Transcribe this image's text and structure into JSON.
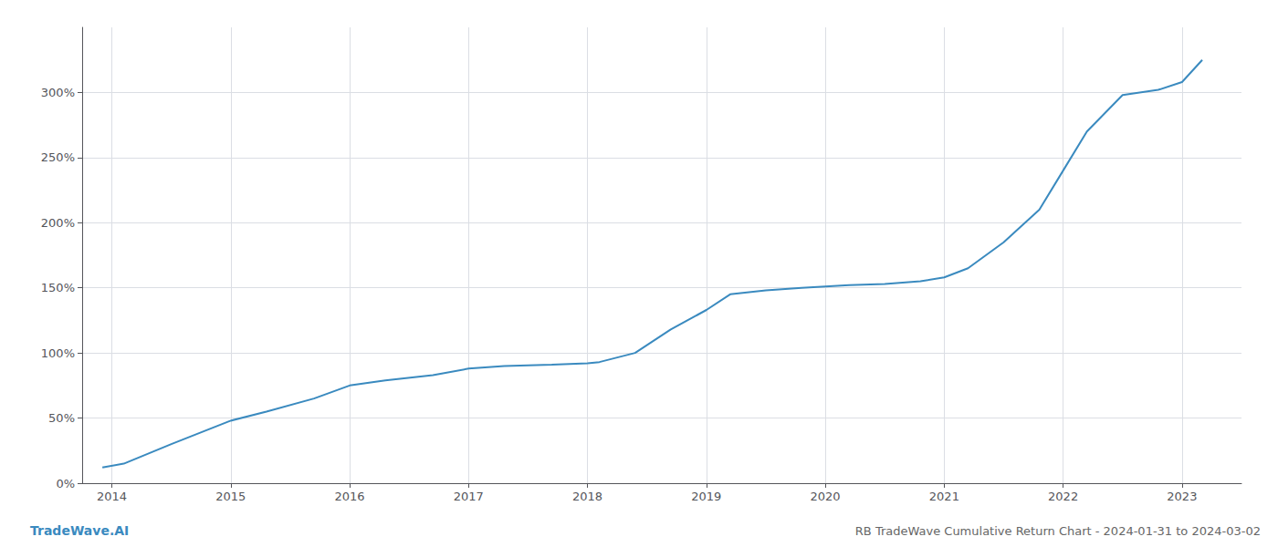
{
  "chart_data": {
    "type": "line",
    "title": "RB TradeWave Cumulative Return Chart - 2024-01-31 to 2024-03-02",
    "annotations": [
      "TradeWave.AI"
    ],
    "color": "#3a8abf",
    "x": [
      2013.92,
      2014.1,
      2014.5,
      2015.0,
      2015.3,
      2015.7,
      2016.0,
      2016.3,
      2016.7,
      2017.0,
      2017.3,
      2017.7,
      2018.0,
      2018.1,
      2018.4,
      2018.7,
      2019.0,
      2019.2,
      2019.5,
      2019.8,
      2020.0,
      2020.2,
      2020.5,
      2020.8,
      2021.0,
      2021.2,
      2021.5,
      2021.8,
      2022.0,
      2022.2,
      2022.5,
      2022.8,
      2023.0,
      2023.17
    ],
    "values": [
      12,
      15,
      30,
      48,
      55,
      65,
      75,
      79,
      83,
      88,
      90,
      91,
      92,
      93,
      100,
      118,
      133,
      145,
      148,
      150,
      151,
      152,
      153,
      155,
      158,
      165,
      185,
      210,
      240,
      270,
      298,
      302,
      308,
      325
    ],
    "xlim": [
      2013.75,
      2023.5
    ],
    "ylim": [
      0,
      350
    ],
    "xticks": [
      2014,
      2015,
      2016,
      2017,
      2018,
      2019,
      2020,
      2021,
      2022,
      2023
    ],
    "yticks": [
      {
        "value": 0,
        "label": "0%"
      },
      {
        "value": 50,
        "label": "50%"
      },
      {
        "value": 100,
        "label": "100%"
      },
      {
        "value": 150,
        "label": "150%"
      },
      {
        "value": 200,
        "label": "200%"
      },
      {
        "value": 250,
        "label": "250%"
      },
      {
        "value": 300,
        "label": "300%"
      }
    ],
    "grid": true
  }
}
